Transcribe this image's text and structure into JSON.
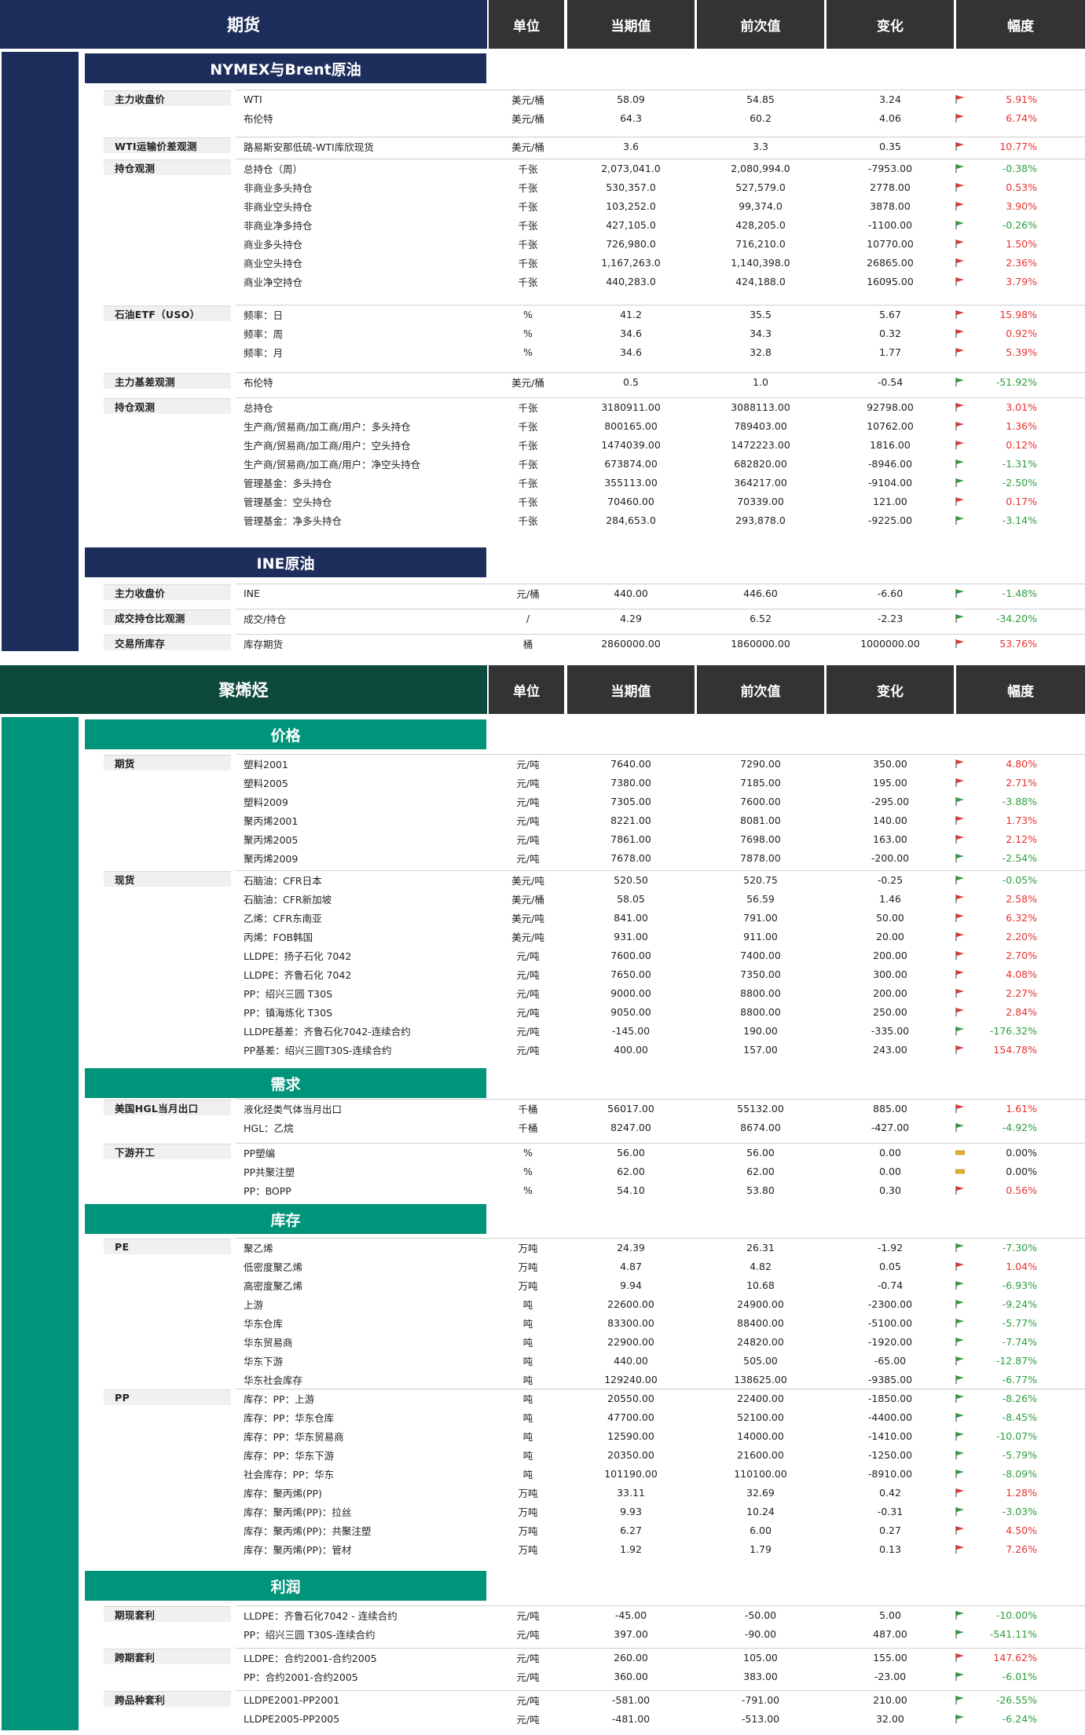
{
  "colors": {
    "navy": "#1d2e5c",
    "teal": "#00947a",
    "dark": "#333333",
    "darkgreen": "#0d4a3c",
    "red": "#e63232",
    "green": "#2e9e3e",
    "yellow": "#e0b030"
  },
  "headers": {
    "unit": "单位",
    "cur": "当期值",
    "prev": "前次值",
    "chg": "变化",
    "pct": "幅度"
  },
  "blocks": [
    {
      "title": "期货",
      "theme": "navy",
      "sections": [
        {
          "title": "NYMEX与Brent原油",
          "groups": [
            {
              "label": "主力收盘价",
              "rows": [
                [
                  "WTI",
                  "美元/桶",
                  "58.09",
                  "54.85",
                  "3.24",
                  "5.91%",
                  "up"
                ],
                [
                  "布伦特",
                  "美元/桶",
                  "64.3",
                  "60.2",
                  "4.06",
                  "6.74%",
                  "up"
                ]
              ]
            },
            {
              "label": "WTI运输价差观测",
              "rows": [
                [
                  "路易斯安那低硫-WTI库欣现货",
                  "美元/桶",
                  "3.6",
                  "3.3",
                  "0.35",
                  "10.77%",
                  "up"
                ]
              ]
            },
            {
              "label": "持仓观测",
              "rows": [
                [
                  "总持仓（周）",
                  "千张",
                  "2,073,041.0",
                  "2,080,994.0",
                  "-7953.00",
                  "-0.38%",
                  "down"
                ],
                [
                  "非商业多头持仓",
                  "千张",
                  "530,357.0",
                  "527,579.0",
                  "2778.00",
                  "0.53%",
                  "up"
                ],
                [
                  "非商业空头持仓",
                  "千张",
                  "103,252.0",
                  "99,374.0",
                  "3878.00",
                  "3.90%",
                  "up"
                ],
                [
                  "非商业净多持仓",
                  "千张",
                  "427,105.0",
                  "428,205.0",
                  "-1100.00",
                  "-0.26%",
                  "down"
                ],
                [
                  "商业多头持仓",
                  "千张",
                  "726,980.0",
                  "716,210.0",
                  "10770.00",
                  "1.50%",
                  "up"
                ],
                [
                  "商业空头持仓",
                  "千张",
                  "1,167,263.0",
                  "1,140,398.0",
                  "26865.00",
                  "2.36%",
                  "up"
                ],
                [
                  "商业净空持仓",
                  "千张",
                  "440,283.0",
                  "424,188.0",
                  "16095.00",
                  "3.79%",
                  "up"
                ]
              ]
            },
            {
              "label": "石油ETF（USO）",
              "rows": [
                [
                  "频率：日",
                  "%",
                  "41.2",
                  "35.5",
                  "5.67",
                  "15.98%",
                  "up"
                ],
                [
                  "频率：周",
                  "%",
                  "34.6",
                  "34.3",
                  "0.32",
                  "0.92%",
                  "up"
                ],
                [
                  "频率：月",
                  "%",
                  "34.6",
                  "32.8",
                  "1.77",
                  "5.39%",
                  "up"
                ]
              ]
            },
            {
              "label": "主力基差观测",
              "rows": [
                [
                  "布伦特",
                  "美元/桶",
                  "0.5",
                  "1.0",
                  "-0.54",
                  "-51.92%",
                  "down"
                ]
              ]
            },
            {
              "label": "持仓观测",
              "rows": [
                [
                  "总持仓",
                  "千张",
                  "3180911.00",
                  "3088113.00",
                  "92798.00",
                  "3.01%",
                  "up"
                ],
                [
                  "生产商/贸易商/加工商/用户：多头持仓",
                  "千张",
                  "800165.00",
                  "789403.00",
                  "10762.00",
                  "1.36%",
                  "up"
                ],
                [
                  "生产商/贸易商/加工商/用户：空头持仓",
                  "千张",
                  "1474039.00",
                  "1472223.00",
                  "1816.00",
                  "0.12%",
                  "up"
                ],
                [
                  "生产商/贸易商/加工商/用户：净空头持仓",
                  "千张",
                  "673874.00",
                  "682820.00",
                  "-8946.00",
                  "-1.31%",
                  "down"
                ],
                [
                  "管理基金：多头持仓",
                  "千张",
                  "355113.00",
                  "364217.00",
                  "-9104.00",
                  "-2.50%",
                  "down"
                ],
                [
                  "管理基金：空头持仓",
                  "千张",
                  "70460.00",
                  "70339.00",
                  "121.00",
                  "0.17%",
                  "up"
                ],
                [
                  "管理基金：净多头持仓",
                  "千张",
                  "284,653.0",
                  "293,878.0",
                  "-9225.00",
                  "-3.14%",
                  "down"
                ]
              ]
            }
          ]
        },
        {
          "title": "INE原油",
          "groups": [
            {
              "label": "主力收盘价",
              "rows": [
                [
                  "INE",
                  "元/桶",
                  "440.00",
                  "446.60",
                  "-6.60",
                  "-1.48%",
                  "down"
                ]
              ]
            },
            {
              "label": "成交持仓比观测",
              "rows": [
                [
                  "成交/持仓",
                  "/",
                  "4.29",
                  "6.52",
                  "-2.23",
                  "-34.20%",
                  "down"
                ]
              ]
            },
            {
              "label": "交易所库存",
              "rows": [
                [
                  "库存期货",
                  "桶",
                  "2860000.00",
                  "1860000.00",
                  "1000000.00",
                  "53.76%",
                  "up"
                ]
              ]
            }
          ]
        }
      ]
    },
    {
      "title": "聚烯烃",
      "theme": "teal",
      "sections": [
        {
          "title": "价格",
          "groups": [
            {
              "label": "期货",
              "rows": [
                [
                  "塑料2001",
                  "元/吨",
                  "7640.00",
                  "7290.00",
                  "350.00",
                  "4.80%",
                  "up"
                ],
                [
                  "塑料2005",
                  "元/吨",
                  "7380.00",
                  "7185.00",
                  "195.00",
                  "2.71%",
                  "up"
                ],
                [
                  "塑料2009",
                  "元/吨",
                  "7305.00",
                  "7600.00",
                  "-295.00",
                  "-3.88%",
                  "down"
                ],
                [
                  "聚丙烯2001",
                  "元/吨",
                  "8221.00",
                  "8081.00",
                  "140.00",
                  "1.73%",
                  "up"
                ],
                [
                  "聚丙烯2005",
                  "元/吨",
                  "7861.00",
                  "7698.00",
                  "163.00",
                  "2.12%",
                  "up"
                ],
                [
                  "聚丙烯2009",
                  "元/吨",
                  "7678.00",
                  "7878.00",
                  "-200.00",
                  "-2.54%",
                  "down"
                ]
              ]
            },
            {
              "label": "现货",
              "rows": [
                [
                  "石脑油：CFR日本",
                  "美元/吨",
                  "520.50",
                  "520.75",
                  "-0.25",
                  "-0.05%",
                  "down"
                ],
                [
                  "石脑油：CFR新加坡",
                  "美元/桶",
                  "58.05",
                  "56.59",
                  "1.46",
                  "2.58%",
                  "up"
                ],
                [
                  "乙烯：CFR东南亚",
                  "美元/吨",
                  "841.00",
                  "791.00",
                  "50.00",
                  "6.32%",
                  "up"
                ],
                [
                  "丙烯：FOB韩国",
                  "美元/吨",
                  "931.00",
                  "911.00",
                  "20.00",
                  "2.20%",
                  "up"
                ],
                [
                  "LLDPE：扬子石化 7042",
                  "元/吨",
                  "7600.00",
                  "7400.00",
                  "200.00",
                  "2.70%",
                  "up"
                ],
                [
                  "LLDPE：齐鲁石化 7042",
                  "元/吨",
                  "7650.00",
                  "7350.00",
                  "300.00",
                  "4.08%",
                  "up"
                ],
                [
                  "PP：绍兴三圆 T30S",
                  "元/吨",
                  "9000.00",
                  "8800.00",
                  "200.00",
                  "2.27%",
                  "up"
                ],
                [
                  "PP：镇海炼化 T30S",
                  "元/吨",
                  "9050.00",
                  "8800.00",
                  "250.00",
                  "2.84%",
                  "up"
                ],
                [
                  "LLDPE基差：齐鲁石化7042-连续合约",
                  "元/吨",
                  "-145.00",
                  "190.00",
                  "-335.00",
                  "-176.32%",
                  "down"
                ],
                [
                  "PP基差：绍兴三圆T30S-连续合约",
                  "元/吨",
                  "400.00",
                  "157.00",
                  "243.00",
                  "154.78%",
                  "up"
                ]
              ]
            }
          ]
        },
        {
          "title": "需求",
          "groups": [
            {
              "label": "美国HGL当月出口",
              "rows": [
                [
                  "液化烃类气体当月出口",
                  "千桶",
                  "56017.00",
                  "55132.00",
                  "885.00",
                  "1.61%",
                  "up"
                ],
                [
                  "HGL：乙烷",
                  "千桶",
                  "8247.00",
                  "8674.00",
                  "-427.00",
                  "-4.92%",
                  "down"
                ]
              ]
            },
            {
              "label": "下游开工",
              "rows": [
                [
                  "PP塑编",
                  "%",
                  "56.00",
                  "56.00",
                  "0.00",
                  "0.00%",
                  "flat"
                ],
                [
                  "PP共聚注塑",
                  "%",
                  "62.00",
                  "62.00",
                  "0.00",
                  "0.00%",
                  "flat"
                ],
                [
                  "PP：BOPP",
                  "%",
                  "54.10",
                  "53.80",
                  "0.30",
                  "0.56%",
                  "up"
                ]
              ]
            }
          ]
        },
        {
          "title": "库存",
          "groups": [
            {
              "label": "PE",
              "rows": [
                [
                  "聚乙烯",
                  "万吨",
                  "24.39",
                  "26.31",
                  "-1.92",
                  "-7.30%",
                  "down"
                ],
                [
                  "低密度聚乙烯",
                  "万吨",
                  "4.87",
                  "4.82",
                  "0.05",
                  "1.04%",
                  "up"
                ],
                [
                  "高密度聚乙烯",
                  "万吨",
                  "9.94",
                  "10.68",
                  "-0.74",
                  "-6.93%",
                  "down"
                ],
                [
                  "上游",
                  "吨",
                  "22600.00",
                  "24900.00",
                  "-2300.00",
                  "-9.24%",
                  "down"
                ],
                [
                  "华东仓库",
                  "吨",
                  "83300.00",
                  "88400.00",
                  "-5100.00",
                  "-5.77%",
                  "down"
                ],
                [
                  "华东贸易商",
                  "吨",
                  "22900.00",
                  "24820.00",
                  "-1920.00",
                  "-7.74%",
                  "down"
                ],
                [
                  "华东下游",
                  "吨",
                  "440.00",
                  "505.00",
                  "-65.00",
                  "-12.87%",
                  "down"
                ],
                [
                  "华东社会库存",
                  "吨",
                  "129240.00",
                  "138625.00",
                  "-9385.00",
                  "-6.77%",
                  "down"
                ]
              ]
            },
            {
              "label": "PP",
              "rows": [
                [
                  "库存：PP：上游",
                  "吨",
                  "20550.00",
                  "22400.00",
                  "-1850.00",
                  "-8.26%",
                  "down"
                ],
                [
                  "库存：PP：华东仓库",
                  "吨",
                  "47700.00",
                  "52100.00",
                  "-4400.00",
                  "-8.45%",
                  "down"
                ],
                [
                  "库存：PP：华东贸易商",
                  "吨",
                  "12590.00",
                  "14000.00",
                  "-1410.00",
                  "-10.07%",
                  "down"
                ],
                [
                  "库存：PP：华东下游",
                  "吨",
                  "20350.00",
                  "21600.00",
                  "-1250.00",
                  "-5.79%",
                  "down"
                ],
                [
                  "社会库存：PP：华东",
                  "吨",
                  "101190.00",
                  "110100.00",
                  "-8910.00",
                  "-8.09%",
                  "down"
                ],
                [
                  "库存：聚丙烯(PP)",
                  "万吨",
                  "33.11",
                  "32.69",
                  "0.42",
                  "1.28%",
                  "up"
                ],
                [
                  "库存：聚丙烯(PP)：拉丝",
                  "万吨",
                  "9.93",
                  "10.24",
                  "-0.31",
                  "-3.03%",
                  "down"
                ],
                [
                  "库存：聚丙烯(PP)：共聚注塑",
                  "万吨",
                  "6.27",
                  "6.00",
                  "0.27",
                  "4.50%",
                  "up"
                ],
                [
                  "库存：聚丙烯(PP)：管材",
                  "万吨",
                  "1.92",
                  "1.79",
                  "0.13",
                  "7.26%",
                  "up"
                ]
              ]
            }
          ]
        },
        {
          "title": "利润",
          "groups": [
            {
              "label": "期现套利",
              "rows": [
                [
                  "LLDPE：齐鲁石化7042 - 连续合约",
                  "元/吨",
                  "-45.00",
                  "-50.00",
                  "5.00",
                  "-10.00%",
                  "down"
                ],
                [
                  "PP：绍兴三圆 T30S-连续合约",
                  "元/吨",
                  "397.00",
                  "-90.00",
                  "487.00",
                  "-541.11%",
                  "down"
                ]
              ]
            },
            {
              "label": "跨期套利",
              "rows": [
                [
                  "LLDPE：合约2001-合约2005",
                  "元/吨",
                  "260.00",
                  "105.00",
                  "155.00",
                  "147.62%",
                  "up"
                ],
                [
                  "PP：合约2001-合约2005",
                  "元/吨",
                  "360.00",
                  "383.00",
                  "-23.00",
                  "-6.01%",
                  "down"
                ]
              ]
            },
            {
              "label": "跨品种套利",
              "rows": [
                [
                  "LLDPE2001-PP2001",
                  "元/吨",
                  "-581.00",
                  "-791.00",
                  "210.00",
                  "-26.55%",
                  "down"
                ],
                [
                  "LLDPE2005-PP2005",
                  "元/吨",
                  "-481.00",
                  "-513.00",
                  "32.00",
                  "-6.24%",
                  "down"
                ]
              ]
            }
          ]
        }
      ]
    }
  ]
}
